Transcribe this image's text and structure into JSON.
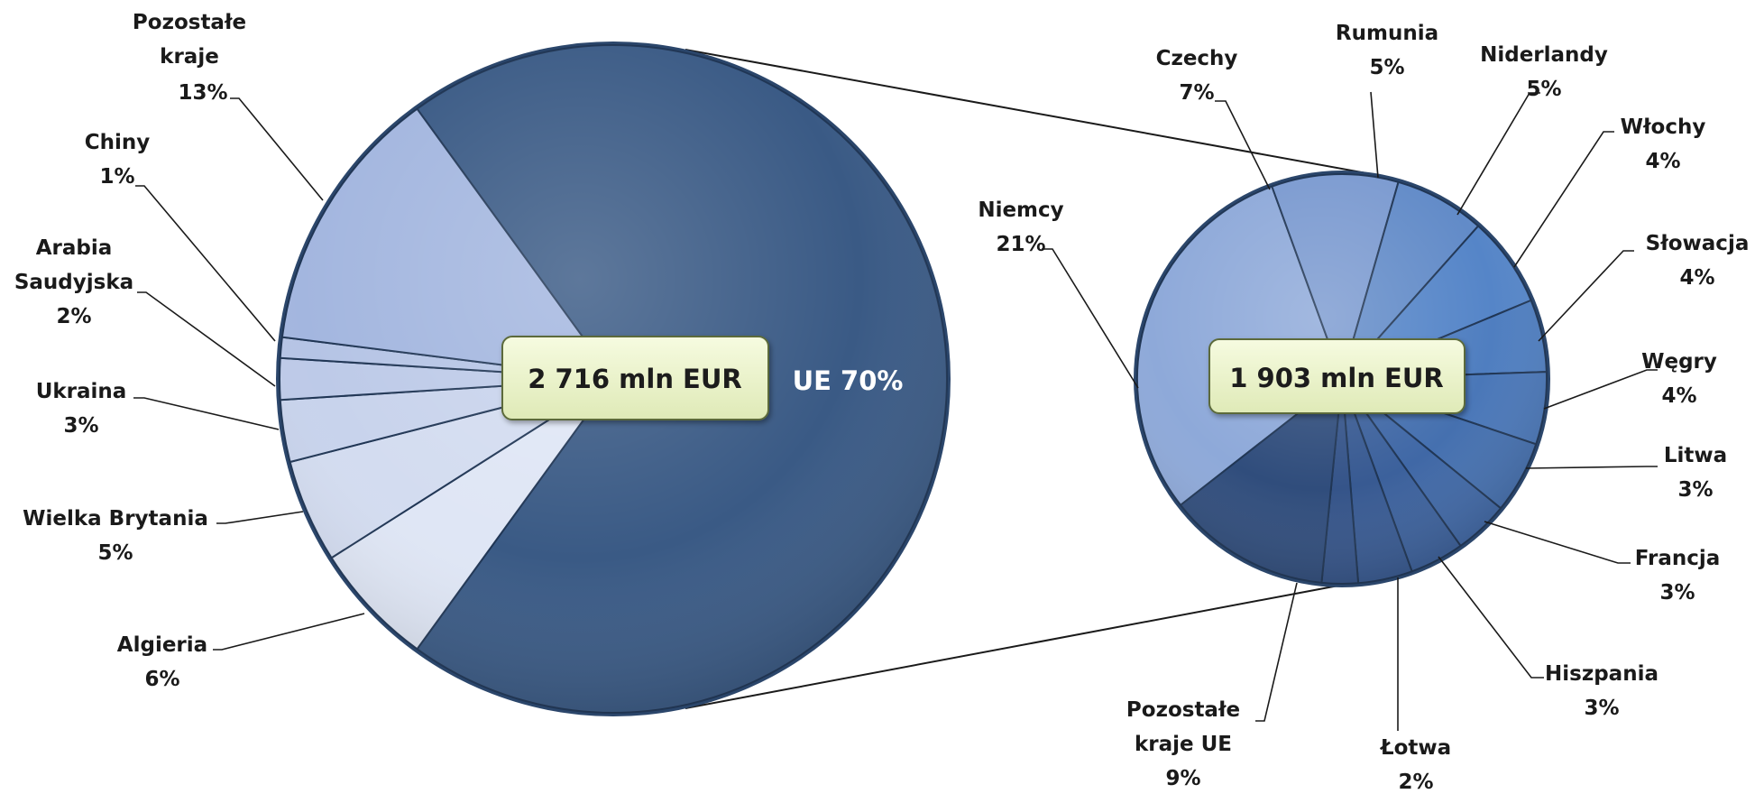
{
  "chart_data": [
    {
      "type": "pie",
      "center_label": "2 716 mln EUR",
      "slices": [
        {
          "label": "UE",
          "value": 70,
          "value_text": "70%",
          "color": "#3a5a85"
        },
        {
          "label": "Algieria",
          "value": 6,
          "value_text": "6%",
          "color": "#dfe6f5"
        },
        {
          "label": "Wielka Brytania",
          "value": 5,
          "value_text": "5%",
          "color": "#d3dcf0"
        },
        {
          "label": "Ukraina",
          "value": 3,
          "value_text": "3%",
          "color": "#c8d3ec"
        },
        {
          "label": "Arabia Saudyjska",
          "value": 2,
          "value_text": "2%",
          "color": "#bdcae8"
        },
        {
          "label": "Chiny",
          "value": 1,
          "value_text": "1%",
          "color": "#b5c4e5"
        },
        {
          "label": "Pozostałe kraje",
          "value": 13,
          "value_text": "13%",
          "color": "#a3b6df"
        }
      ]
    },
    {
      "type": "pie",
      "center_label": "1 903 mln EUR",
      "slices": [
        {
          "label": "Niemcy",
          "value": 21,
          "value_text": "21%",
          "color": "#8ea9d9"
        },
        {
          "label": "Czechy",
          "value": 7,
          "value_text": "7%",
          "color": "#7b9ad0"
        },
        {
          "label": "Rumunia",
          "value": 5,
          "value_text": "5%",
          "color": "#628bc8"
        },
        {
          "label": "Niderlandy",
          "value": 5,
          "value_text": "5%",
          "color": "#5585c8"
        },
        {
          "label": "Włochy",
          "value": 4,
          "value_text": "4%",
          "color": "#4f7ec0"
        },
        {
          "label": "Słowacja",
          "value": 4,
          "value_text": "4%",
          "color": "#4a77b8"
        },
        {
          "label": "Węgry",
          "value": 4,
          "value_text": "4%",
          "color": "#4570af"
        },
        {
          "label": "Litwa",
          "value": 3,
          "value_text": "3%",
          "color": "#4068a6"
        },
        {
          "label": "Francja",
          "value": 3,
          "value_text": "3%",
          "color": "#3c619c"
        },
        {
          "label": "Hiszpania",
          "value": 3,
          "value_text": "3%",
          "color": "#385a92"
        },
        {
          "label": "Łotwa",
          "value": 2,
          "value_text": "2%",
          "color": "#355489"
        },
        {
          "label": "Pozostałe kraje UE",
          "value": 9,
          "value_text": "9%",
          "color": "#304d7c"
        }
      ]
    }
  ],
  "labels": {
    "ue": "UE 70%",
    "left": [
      {
        "lines": [
          "Pozostałe",
          "kraje",
          "13%"
        ]
      },
      {
        "lines": [
          "Chiny",
          "1%"
        ]
      },
      {
        "lines": [
          "Arabia",
          "Saudyjska",
          "2%"
        ]
      },
      {
        "lines": [
          "Ukraina",
          "3%"
        ]
      },
      {
        "lines": [
          "Wielka Brytania",
          "5%"
        ]
      },
      {
        "lines": [
          "Algieria",
          "6%"
        ]
      }
    ],
    "right": [
      {
        "lines": [
          "Niemcy",
          "21%"
        ]
      },
      {
        "lines": [
          "Czechy",
          "7%"
        ]
      },
      {
        "lines": [
          "Rumunia",
          "5%"
        ]
      },
      {
        "lines": [
          "Niderlandy",
          "5%"
        ]
      },
      {
        "lines": [
          "Włochy",
          "4%"
        ]
      },
      {
        "lines": [
          "Słowacja",
          "4%"
        ]
      },
      {
        "lines": [
          "Węgry",
          "4%"
        ]
      },
      {
        "lines": [
          "Litwa",
          "3%"
        ]
      },
      {
        "lines": [
          "Francja",
          "3%"
        ]
      },
      {
        "lines": [
          "Hiszpania",
          "3%"
        ]
      },
      {
        "lines": [
          "Pozostałe",
          "kraje UE",
          "9%"
        ]
      },
      {
        "lines": [
          "Łotwa",
          "2%"
        ]
      }
    ]
  }
}
